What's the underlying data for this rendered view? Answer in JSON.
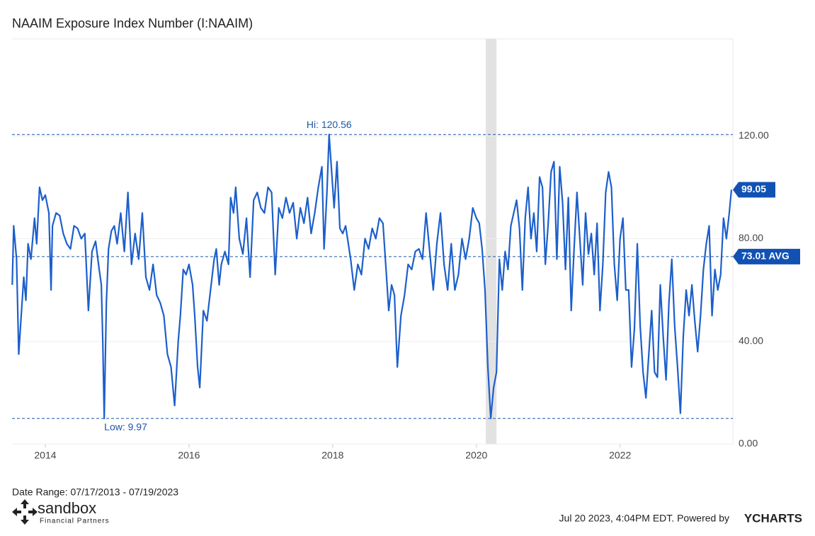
{
  "chart_data": {
    "type": "line",
    "title": "NAAIM Exposure Index Number (I:NAAIM)",
    "series": [
      {
        "name": "NAAIM Exposure Index",
        "color": "#1c5fcb",
        "x": [
          2013.54,
          2013.56,
          2013.6,
          2013.63,
          2013.66,
          2013.7,
          2013.73,
          2013.76,
          2013.8,
          2013.85,
          2013.88,
          2013.92,
          2013.96,
          2014.0,
          2014.05,
          2014.08,
          2014.1,
          2014.15,
          2014.2,
          2014.25,
          2014.3,
          2014.35,
          2014.4,
          2014.45,
          2014.5,
          2014.55,
          2014.6,
          2014.65,
          2014.7,
          2014.75,
          2014.78,
          2014.8,
          2014.82,
          2014.85,
          2014.88,
          2014.92,
          2014.96,
          2015.0,
          2015.05,
          2015.1,
          2015.15,
          2015.2,
          2015.25,
          2015.3,
          2015.35,
          2015.4,
          2015.45,
          2015.5,
          2015.55,
          2015.6,
          2015.65,
          2015.7,
          2015.75,
          2015.8,
          2015.85,
          2015.88,
          2015.92,
          2015.96,
          2016.0,
          2016.05,
          2016.08,
          2016.12,
          2016.15,
          2016.2,
          2016.25,
          2016.3,
          2016.35,
          2016.38,
          2016.42,
          2016.45,
          2016.5,
          2016.55,
          2016.58,
          2016.62,
          2016.65,
          2016.7,
          2016.75,
          2016.8,
          2016.85,
          2016.9,
          2016.95,
          2017.0,
          2017.05,
          2017.1,
          2017.15,
          2017.2,
          2017.25,
          2017.3,
          2017.35,
          2017.4,
          2017.45,
          2017.5,
          2017.55,
          2017.6,
          2017.65,
          2017.7,
          2017.75,
          2017.8,
          2017.85,
          2017.88,
          2017.92,
          2017.95,
          2018.02,
          2018.06,
          2018.1,
          2018.14,
          2018.18,
          2018.25,
          2018.3,
          2018.35,
          2018.4,
          2018.45,
          2018.5,
          2018.55,
          2018.6,
          2018.65,
          2018.7,
          2018.75,
          2018.78,
          2018.82,
          2018.86,
          2018.9,
          2018.95,
          2019.0,
          2019.05,
          2019.1,
          2019.15,
          2019.2,
          2019.25,
          2019.3,
          2019.35,
          2019.4,
          2019.45,
          2019.5,
          2019.55,
          2019.6,
          2019.65,
          2019.7,
          2019.75,
          2019.8,
          2019.85,
          2019.9,
          2019.95,
          2020.0,
          2020.04,
          2020.08,
          2020.12,
          2020.16,
          2020.2,
          2020.24,
          2020.28,
          2020.32,
          2020.36,
          2020.4,
          2020.44,
          2020.48,
          2020.52,
          2020.56,
          2020.6,
          2020.64,
          2020.68,
          2020.72,
          2020.76,
          2020.8,
          2020.84,
          2020.88,
          2020.92,
          2020.96,
          2021.0,
          2021.04,
          2021.08,
          2021.12,
          2021.16,
          2021.2,
          2021.24,
          2021.28,
          2021.32,
          2021.36,
          2021.4,
          2021.44,
          2021.48,
          2021.52,
          2021.56,
          2021.6,
          2021.64,
          2021.68,
          2021.72,
          2021.76,
          2021.8,
          2021.84,
          2021.88,
          2021.92,
          2021.96,
          2022.0,
          2022.04,
          2022.08,
          2022.12,
          2022.16,
          2022.2,
          2022.24,
          2022.28,
          2022.32,
          2022.36,
          2022.4,
          2022.44,
          2022.48,
          2022.52,
          2022.56,
          2022.6,
          2022.64,
          2022.68,
          2022.72,
          2022.76,
          2022.8,
          2022.84,
          2022.88,
          2022.92,
          2022.96,
          2023.0,
          2023.04,
          2023.08,
          2023.12,
          2023.16,
          2023.2,
          2023.24,
          2023.28,
          2023.32,
          2023.36,
          2023.4,
          2023.44,
          2023.48,
          2023.52,
          2023.55
        ],
        "values": [
          62,
          85,
          72,
          35,
          48,
          65,
          56,
          78,
          72,
          88,
          78,
          100,
          95,
          97,
          90,
          60,
          85,
          90,
          89,
          82,
          78,
          76,
          85,
          84,
          80,
          82,
          52,
          75,
          79,
          68,
          62,
          40,
          9.97,
          55,
          76,
          83,
          85,
          78,
          90,
          75,
          98,
          70,
          82,
          72,
          90,
          65,
          60,
          70,
          58,
          55,
          50,
          35,
          30,
          15,
          40,
          50,
          68,
          66,
          70,
          62,
          50,
          30,
          22,
          52,
          48,
          60,
          72,
          76,
          62,
          70,
          75,
          70,
          96,
          90,
          100,
          80,
          74,
          88,
          65,
          95,
          98,
          92,
          90,
          100,
          98,
          66,
          92,
          88,
          96,
          90,
          94,
          80,
          92,
          86,
          96,
          82,
          90,
          100,
          108,
          76,
          98,
          120.56,
          92,
          110,
          84,
          82,
          85,
          72,
          60,
          70,
          66,
          80,
          76,
          84,
          80,
          88,
          86,
          65,
          52,
          62,
          58,
          30,
          50,
          58,
          70,
          68,
          75,
          76,
          72,
          90,
          75,
          60,
          78,
          90,
          70,
          60,
          78,
          60,
          66,
          80,
          72,
          80,
          92,
          88,
          86,
          76,
          60,
          30,
          10,
          22,
          28,
          72,
          60,
          75,
          68,
          85,
          90,
          95,
          84,
          60,
          88,
          100,
          80,
          90,
          75,
          104,
          100,
          70,
          86,
          106,
          110,
          72,
          108,
          94,
          68,
          96,
          52,
          76,
          98,
          80,
          62,
          90,
          74,
          82,
          66,
          86,
          52,
          70,
          98,
          106,
          100,
          70,
          56,
          80,
          88,
          60,
          60,
          30,
          45,
          78,
          46,
          28,
          18,
          35,
          52,
          28,
          26,
          62,
          42,
          25,
          55,
          72,
          46,
          30,
          12,
          42,
          60,
          50,
          62,
          48,
          36,
          50,
          68,
          78,
          85,
          50,
          68,
          60,
          66,
          88,
          80,
          90,
          99.05
        ]
      }
    ],
    "xlim": [
      2013.537,
      2023.57
    ],
    "xticks": [
      2014,
      2016,
      2018,
      2020,
      2022
    ],
    "ylim": [
      0,
      157.8
    ],
    "yticks": [
      {
        "value": 0,
        "label": "0.00"
      },
      {
        "value": 40,
        "label": "40.00"
      },
      {
        "value": 80,
        "label": "80.00"
      },
      {
        "value": 120,
        "label": "120.00"
      }
    ],
    "grid": true,
    "recession_band": [
      2020.13,
      2020.28
    ],
    "hi": {
      "x": 2017.95,
      "value": 120.56,
      "label": "Hi: 120.56"
    },
    "low": {
      "x": 2014.82,
      "value": 9.97,
      "label": "Low: 9.97"
    },
    "average": {
      "value": 73.01,
      "label": "73.01 AVG"
    },
    "last_label": "99.05",
    "date_range": "Date Range: 07/17/2013 - 07/19/2023",
    "logo_name": "sandbox",
    "logo_sub": "Financial Partners",
    "footer": "Jul 20 2023, 4:04PM EDT. Powered by",
    "brand": "YCHARTS"
  }
}
